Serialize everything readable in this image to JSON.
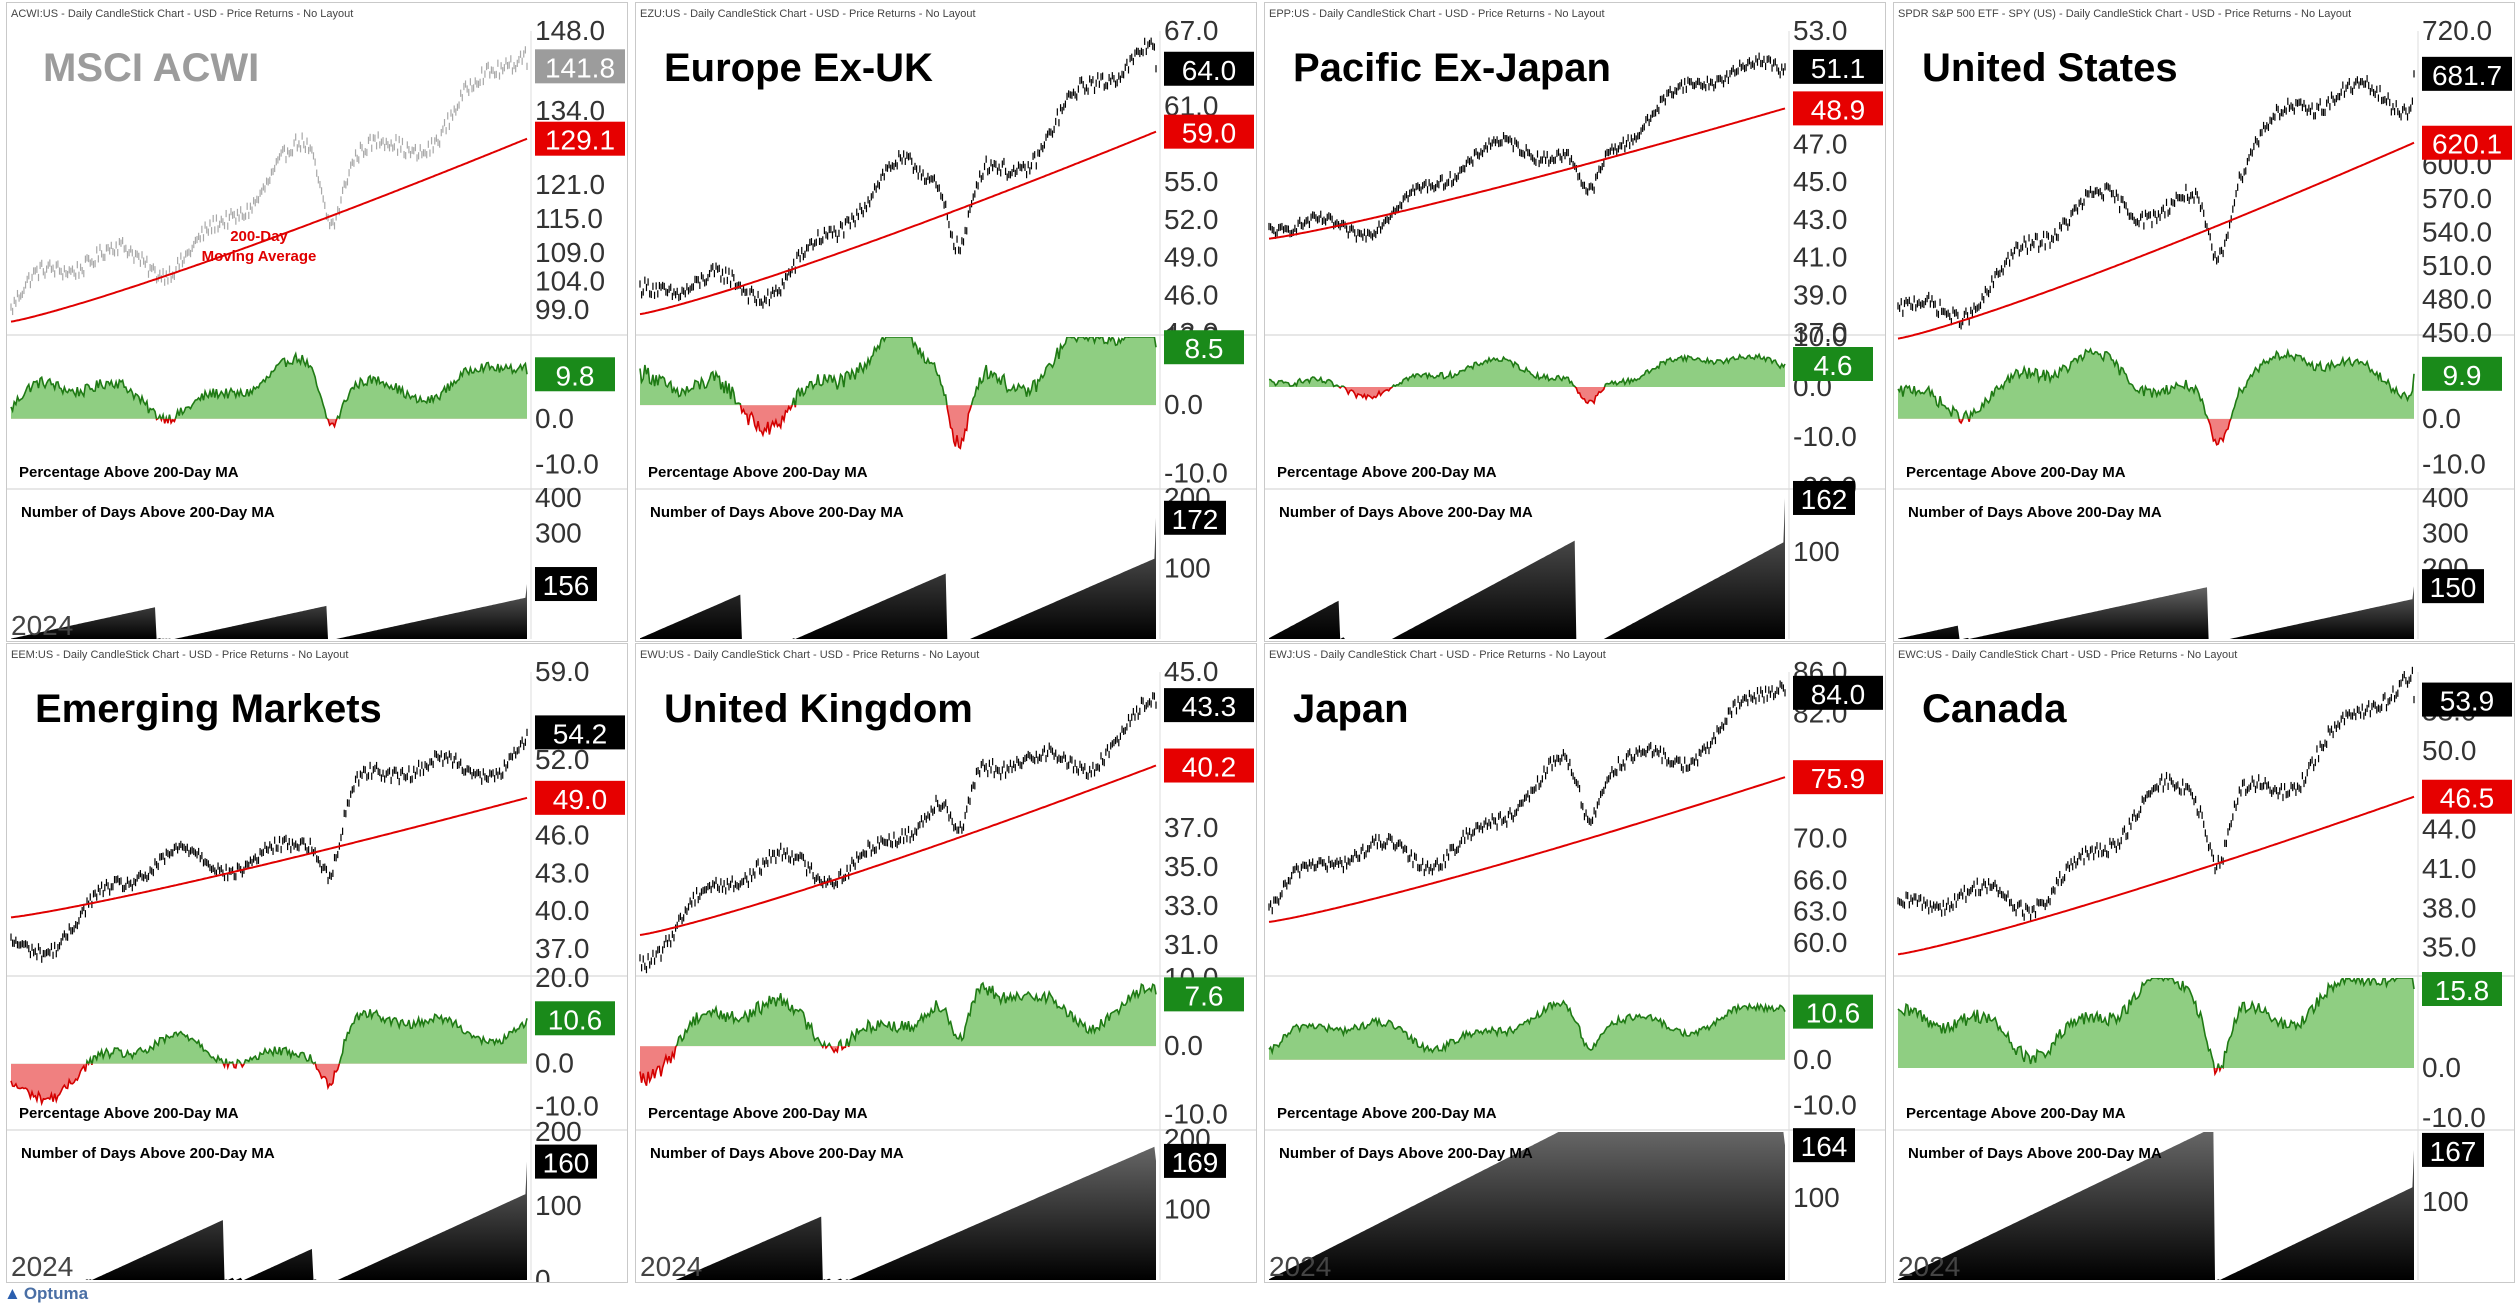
{
  "brand": "Optuma",
  "colors": {
    "price_dark": "#000000",
    "price_light": "#a8a8a8",
    "ma": "#e00000",
    "pos_line": "#1f7a14",
    "pos_fill": "#8fce82",
    "neg_line": "#d40000",
    "neg_fill": "#f08080",
    "label_black": "#000000",
    "label_gray": "#9c9c9c",
    "label_red": "#e60000",
    "label_green": "#1a8a1a"
  },
  "panels": [
    {
      "header": "ACWI:US - Daily CandleStick Chart - USD - Price Returns - No Layout",
      "title": "MSCI ACWI",
      "light": true,
      "price_ticks": [
        "148.0",
        "141.8",
        "134.0",
        "129.1",
        "121.0",
        "115.0",
        "109.0",
        "104.0",
        "99.0"
      ],
      "price_ylim": [
        95,
        148
      ],
      "last_price": "141.8",
      "ma_value": "129.1",
      "ma_annotation": [
        "200-Day",
        "Moving Average"
      ],
      "pct_ticks": [
        "9.8",
        "0.0",
        "-10.0"
      ],
      "pct_ylim": [
        -15,
        18
      ],
      "pct_value": "9.8",
      "pct_label": "Percentage Above 200-Day MA",
      "days_ticks": [
        "400",
        "300",
        "156"
      ],
      "days_ylim": [
        0,
        420
      ],
      "days_value": "156",
      "days_label": "Number of Days Above 200-Day MA",
      "date_label": "2024"
    },
    {
      "header": "EZU:US - Daily CandleStick Chart - USD - Price Returns - No Layout",
      "title": "Europe Ex-UK",
      "light": false,
      "price_ticks": [
        "67.0",
        "64.0",
        "61.0",
        "59.0",
        "55.0",
        "52.0",
        "49.0",
        "46.0",
        "43.0"
      ],
      "price_ylim": [
        43,
        67
      ],
      "last_price": "64.0",
      "ma_value": "59.0",
      "ma_annotation": [],
      "pct_ticks": [
        "10.0",
        "8.5",
        "0.0",
        "-10.0"
      ],
      "pct_ylim": [
        -12,
        10
      ],
      "pct_value": "8.5",
      "pct_label": "Percentage Above 200-Day MA",
      "days_ticks": [
        "200",
        "172",
        "100"
      ],
      "days_ylim": [
        0,
        210
      ],
      "days_value": "172",
      "days_label": "Number of Days Above 200-Day MA",
      "date_label": ""
    },
    {
      "header": "EPP:US - Daily CandleStick Chart - USD - Price Returns - No Layout",
      "title": "Pacific Ex-Japan",
      "light": false,
      "price_ticks": [
        "53.0",
        "51.1",
        "48.9",
        "47.0",
        "45.0",
        "43.0",
        "41.0",
        "39.0",
        "37.0"
      ],
      "price_ylim": [
        37,
        53
      ],
      "last_price": "51.1",
      "ma_value": "48.9",
      "ma_annotation": [],
      "pct_ticks": [
        "10.0",
        "4.6",
        "0.0",
        "-10.0",
        "-20.0"
      ],
      "pct_ylim": [
        -20,
        10
      ],
      "pct_value": "4.6",
      "pct_label": "Percentage Above 200-Day MA",
      "days_ticks": [
        "162",
        "100"
      ],
      "days_ylim": [
        0,
        170
      ],
      "days_value": "162",
      "days_label": "Number of Days Above 200-Day MA",
      "date_label": ""
    },
    {
      "header": "SPDR S&P 500 ETF - SPY (US) - Daily CandleStick Chart - USD - Price Returns - No Layout",
      "title": "United States",
      "light": false,
      "price_ticks": [
        "720.0",
        "681.7",
        "620.1",
        "600.0",
        "570.0",
        "540.0",
        "510.0",
        "480.0",
        "450.0"
      ],
      "price_ylim": [
        450,
        720
      ],
      "last_price": "681.7",
      "ma_value": "620.1",
      "ma_annotation": [],
      "pct_ticks": [
        "9.9",
        "0.0",
        "-10.0"
      ],
      "pct_ylim": [
        -15,
        18
      ],
      "pct_value": "9.9",
      "pct_label": "Percentage Above 200-Day MA",
      "days_ticks": [
        "400",
        "300",
        "200",
        "150"
      ],
      "days_ylim": [
        0,
        420
      ],
      "days_value": "150",
      "days_label": "Number of Days Above 200-Day MA",
      "date_label": ""
    },
    {
      "header": "EEM:US - Daily CandleStick Chart - USD - Price Returns - No Layout",
      "title": "Emerging Markets",
      "light": false,
      "price_ticks": [
        "59.0",
        "54.2",
        "52.0",
        "49.0",
        "46.0",
        "43.0",
        "40.0",
        "37.0"
      ],
      "price_ylim": [
        35,
        59
      ],
      "last_price": "54.2",
      "ma_value": "49.0",
      "ma_annotation": [],
      "pct_ticks": [
        "20.0",
        "10.6",
        "0.0",
        "-10.0"
      ],
      "pct_ylim": [
        -15,
        20
      ],
      "pct_value": "10.6",
      "pct_label": "Percentage Above 200-Day MA",
      "days_ticks": [
        "200",
        "160",
        "100",
        "0"
      ],
      "days_ylim": [
        0,
        200
      ],
      "days_value": "160",
      "days_label": "Number of Days Above 200-Day MA",
      "date_label": "2024"
    },
    {
      "header": "EWU:US - Daily CandleStick Chart - USD - Price Returns - No Layout",
      "title": "United Kingdom",
      "light": false,
      "price_ticks": [
        "45.0",
        "43.3",
        "40.2",
        "37.0",
        "35.0",
        "33.0",
        "31.0"
      ],
      "price_ylim": [
        29.5,
        45
      ],
      "last_price": "43.3",
      "ma_value": "40.2",
      "ma_annotation": [],
      "pct_ticks": [
        "10.0",
        "7.6",
        "0.0",
        "-10.0"
      ],
      "pct_ylim": [
        -12,
        10
      ],
      "pct_value": "7.6",
      "pct_label": "Percentage Above 200-Day MA",
      "days_ticks": [
        "200",
        "169",
        "100"
      ],
      "days_ylim": [
        0,
        210
      ],
      "days_value": "169",
      "days_label": "Number of Days Above 200-Day MA",
      "date_label": "2024"
    },
    {
      "header": "EWJ:US - Daily CandleStick Chart - USD - Price Returns - No Layout",
      "title": "Japan",
      "light": false,
      "price_ticks": [
        "86.0",
        "84.0",
        "82.0",
        "75.9",
        "70.0",
        "66.0",
        "63.0",
        "60.0"
      ],
      "price_ylim": [
        57,
        86
      ],
      "last_price": "84.0",
      "ma_value": "75.9",
      "ma_annotation": [],
      "pct_ticks": [
        "10.6",
        "0.0",
        "-10.0"
      ],
      "pct_ylim": [
        -15,
        18
      ],
      "pct_value": "10.6",
      "pct_label": "Percentage Above 200-Day MA",
      "days_ticks": [
        "164",
        "100"
      ],
      "days_ylim": [
        0,
        180
      ],
      "days_value": "164",
      "days_label": "Number of Days Above 200-Day MA",
      "date_label": "2024"
    },
    {
      "header": "EWC:US - Daily CandleStick Chart - USD - Price Returns - No Layout",
      "title": "Canada",
      "light": false,
      "price_ticks": [
        "53.0",
        "53.9",
        "50.0",
        "46.5",
        "44.0",
        "41.0",
        "38.0",
        "35.0"
      ],
      "price_ylim": [
        33,
        56
      ],
      "last_price": "53.9",
      "ma_value": "46.5",
      "ma_annotation": [],
      "pct_ticks": [
        "15.8",
        "0.0",
        "-10.0"
      ],
      "pct_ylim": [
        -12,
        18
      ],
      "pct_value": "15.8",
      "pct_label": "Percentage Above 200-Day MA",
      "days_ticks": [
        "167",
        "100"
      ],
      "days_ylim": [
        0,
        190
      ],
      "days_value": "167",
      "days_label": "Number of Days Above 200-Day MA",
      "date_label": "2024"
    }
  ],
  "chart_data": [
    {
      "type": "line",
      "title": "MSCI ACWI",
      "series": [
        {
          "name": "Price",
          "start": 99,
          "end": 141.8
        },
        {
          "name": "200-Day Moving Average",
          "start": 97,
          "end": 129.1
        }
      ],
      "pct_above_ma_last": 9.8,
      "days_above_ma_last": 156,
      "x_start_label": "2024"
    },
    {
      "type": "line",
      "title": "Europe Ex-UK",
      "series": [
        {
          "name": "Price",
          "start": 44,
          "end": 64.0
        },
        {
          "name": "200-Day MA",
          "start": 44.5,
          "end": 59.0
        }
      ],
      "pct_above_ma_last": 8.5,
      "days_above_ma_last": 172
    },
    {
      "type": "line",
      "title": "Pacific Ex-Japan",
      "series": [
        {
          "name": "Price",
          "start": 42,
          "end": 51.1
        },
        {
          "name": "200-Day MA",
          "start": 42,
          "end": 48.9
        }
      ],
      "pct_above_ma_last": 4.6,
      "days_above_ma_last": 162
    },
    {
      "type": "line",
      "title": "United States",
      "series": [
        {
          "name": "Price",
          "start": 470,
          "end": 681.7
        },
        {
          "name": "200-Day MA",
          "start": 445,
          "end": 620.1
        }
      ],
      "pct_above_ma_last": 9.9,
      "days_above_ma_last": 150
    },
    {
      "type": "line",
      "title": "Emerging Markets",
      "series": [
        {
          "name": "Price",
          "start": 38,
          "end": 54.2
        },
        {
          "name": "200-Day MA",
          "start": 39.5,
          "end": 49.0
        }
      ],
      "pct_above_ma_last": 10.6,
      "days_above_ma_last": 160,
      "x_start_label": "2024"
    },
    {
      "type": "line",
      "title": "United Kingdom",
      "series": [
        {
          "name": "Price",
          "start": 31.5,
          "end": 43.3
        },
        {
          "name": "200-Day MA",
          "start": 31.5,
          "end": 40.2
        }
      ],
      "pct_above_ma_last": 7.6,
      "days_above_ma_last": 169,
      "x_start_label": "2024"
    },
    {
      "type": "line",
      "title": "Japan",
      "series": [
        {
          "name": "Price",
          "start": 64,
          "end": 84.0
        },
        {
          "name": "200-Day MA",
          "start": 62,
          "end": 75.9
        }
      ],
      "pct_above_ma_last": 10.6,
      "days_above_ma_last": 164,
      "x_start_label": "2024"
    },
    {
      "type": "line",
      "title": "Canada",
      "series": [
        {
          "name": "Price",
          "start": 36,
          "end": 53.9
        },
        {
          "name": "200-Day MA",
          "start": 34.5,
          "end": 46.5
        }
      ],
      "pct_above_ma_last": 15.8,
      "days_above_ma_last": 167,
      "x_start_label": "2024"
    }
  ]
}
